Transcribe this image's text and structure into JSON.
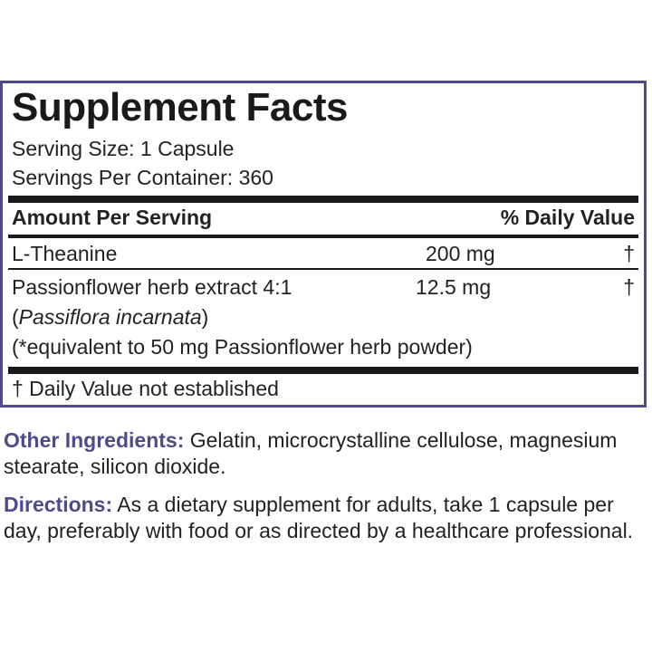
{
  "panel": {
    "title": "Supplement Facts",
    "serving_size": "Serving Size: 1 Capsule",
    "servings_per_container": "Servings Per Container: 360",
    "header": {
      "amount_per_serving": "Amount Per Serving",
      "daily_value": "% Daily Value"
    },
    "rows": [
      {
        "name": "L-Theanine",
        "amount": "200 mg",
        "dv": "†"
      },
      {
        "name": "Passionflower herb extract 4:1",
        "amount": "12.5 mg",
        "dv": "†"
      }
    ],
    "latin_open": "(",
    "latin_name": "Passiflora incarnata",
    "latin_close": ")",
    "equivalent_note": "(*equivalent to 50 mg Passionflower herb powder)",
    "footnote": "† Daily Value not established"
  },
  "other_ingredients": {
    "label": "Other Ingredients:",
    "text": " Gelatin, microcrystalline cellulose, magnesium stearate, silicon dioxide."
  },
  "directions": {
    "label": "Directions:",
    "text": " As a dietary supplement for adults, take 1 capsule per day, preferably with food or as directed by a healthcare professional."
  },
  "colors": {
    "accent": "#4f4a8c",
    "text": "#222222"
  }
}
